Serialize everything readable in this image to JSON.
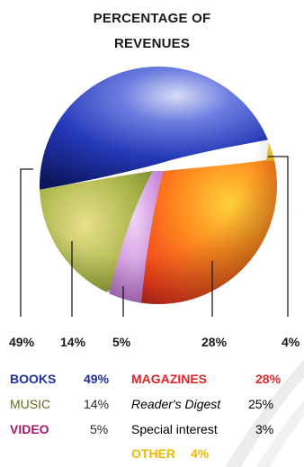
{
  "chart_data": {
    "type": "pie",
    "title": [
      "PERCENTAGE OF",
      "REVENUES"
    ],
    "slices": [
      {
        "name": "BOOKS",
        "value": 49,
        "label": "49%",
        "color": "#1e2f9a"
      },
      {
        "name": "MUSIC",
        "value": 14,
        "label": "14%",
        "color": "#7f9a2a"
      },
      {
        "name": "VIDEO",
        "value": 5,
        "label": "5%",
        "color": "#c46fd6"
      },
      {
        "name": "MAGAZINES",
        "value": 28,
        "label": "28%",
        "color": "#f0501a"
      },
      {
        "name": "OTHER",
        "value": 4,
        "label": "4%",
        "color": "#f2c21a"
      }
    ],
    "legend": {
      "books": {
        "name": "BOOKS",
        "value": "49%",
        "color": "#1e2f9a"
      },
      "music": {
        "name": "MUSIC",
        "value": "14%",
        "color": "#5d6b22"
      },
      "video": {
        "name": "VIDEO",
        "value": "5%",
        "color": "#a8186a"
      },
      "magazines": {
        "name": "MAGAZINES",
        "value": "28%",
        "color": "#e0242a"
      },
      "readers_digest": {
        "name": "Reader's Digest",
        "value": "25%"
      },
      "special_interest": {
        "name": "Special interest",
        "value": "3%"
      },
      "other": {
        "name": "OTHER",
        "value": "4%",
        "color": "#f0b800"
      }
    }
  }
}
